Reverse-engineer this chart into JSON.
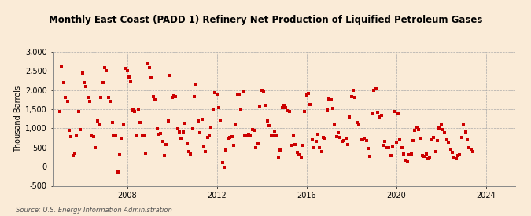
{
  "title": "Monthly East Coast (PADD 1) Refinery Net Production of Liquified Petroleum Gases",
  "ylabel": "Thousand Barrels",
  "source": "Source: U.S. Energy Information Administration",
  "background_color": "#faebd7",
  "marker_color": "#cc0000",
  "grid_color": "#aaaaaa",
  "ylim": [
    -500,
    3000
  ],
  "yticks": [
    -500,
    0,
    500,
    1000,
    1500,
    2000,
    2500,
    3000
  ],
  "xlim_start": 2004.7,
  "xlim_end": 2025.3,
  "xticks": [
    2008,
    2012,
    2016,
    2020,
    2024
  ],
  "data": [
    [
      2005.0,
      1450
    ],
    [
      2005.083,
      2600
    ],
    [
      2005.167,
      2200
    ],
    [
      2005.25,
      1800
    ],
    [
      2005.333,
      1700
    ],
    [
      2005.417,
      950
    ],
    [
      2005.5,
      780
    ],
    [
      2005.583,
      300
    ],
    [
      2005.667,
      350
    ],
    [
      2005.75,
      800
    ],
    [
      2005.833,
      1450
    ],
    [
      2005.917,
      960
    ],
    [
      2006.0,
      2450
    ],
    [
      2006.083,
      2200
    ],
    [
      2006.167,
      2100
    ],
    [
      2006.25,
      1800
    ],
    [
      2006.333,
      1700
    ],
    [
      2006.417,
      800
    ],
    [
      2006.5,
      780
    ],
    [
      2006.583,
      500
    ],
    [
      2006.667,
      1200
    ],
    [
      2006.75,
      1120
    ],
    [
      2006.833,
      1800
    ],
    [
      2006.917,
      2200
    ],
    [
      2007.0,
      2590
    ],
    [
      2007.083,
      2500
    ],
    [
      2007.167,
      1800
    ],
    [
      2007.25,
      1700
    ],
    [
      2007.333,
      1150
    ],
    [
      2007.417,
      800
    ],
    [
      2007.5,
      800
    ],
    [
      2007.583,
      -150
    ],
    [
      2007.667,
      320
    ],
    [
      2007.75,
      750
    ],
    [
      2007.833,
      1100
    ],
    [
      2007.917,
      2560
    ],
    [
      2008.0,
      2500
    ],
    [
      2008.083,
      2350
    ],
    [
      2008.167,
      2210
    ],
    [
      2008.25,
      1490
    ],
    [
      2008.333,
      1440
    ],
    [
      2008.417,
      820
    ],
    [
      2008.5,
      1500
    ],
    [
      2008.583,
      1150
    ],
    [
      2008.667,
      800
    ],
    [
      2008.75,
      820
    ],
    [
      2008.833,
      350
    ],
    [
      2008.917,
      2700
    ],
    [
      2009.0,
      2580
    ],
    [
      2009.083,
      2320
    ],
    [
      2009.167,
      1820
    ],
    [
      2009.25,
      1750
    ],
    [
      2009.333,
      980
    ],
    [
      2009.417,
      850
    ],
    [
      2009.5,
      860
    ],
    [
      2009.583,
      650
    ],
    [
      2009.667,
      300
    ],
    [
      2009.75,
      570
    ],
    [
      2009.833,
      1200
    ],
    [
      2009.917,
      2380
    ],
    [
      2010.0,
      1800
    ],
    [
      2010.083,
      1850
    ],
    [
      2010.167,
      1830
    ],
    [
      2010.25,
      980
    ],
    [
      2010.333,
      900
    ],
    [
      2010.417,
      750
    ],
    [
      2010.5,
      900
    ],
    [
      2010.583,
      1130
    ],
    [
      2010.667,
      600
    ],
    [
      2010.75,
      390
    ],
    [
      2010.833,
      340
    ],
    [
      2010.917,
      990
    ],
    [
      2011.0,
      1840
    ],
    [
      2011.083,
      2130
    ],
    [
      2011.167,
      1200
    ],
    [
      2011.25,
      880
    ],
    [
      2011.333,
      1240
    ],
    [
      2011.417,
      510
    ],
    [
      2011.5,
      400
    ],
    [
      2011.583,
      770
    ],
    [
      2011.667,
      830
    ],
    [
      2011.75,
      1020
    ],
    [
      2011.833,
      1500
    ],
    [
      2011.917,
      1930
    ],
    [
      2012.0,
      1890
    ],
    [
      2012.083,
      1550
    ],
    [
      2012.167,
      1210
    ],
    [
      2012.25,
      100
    ],
    [
      2012.333,
      -20
    ],
    [
      2012.417,
      440
    ],
    [
      2012.5,
      750
    ],
    [
      2012.583,
      760
    ],
    [
      2012.667,
      780
    ],
    [
      2012.75,
      560
    ],
    [
      2012.833,
      1110
    ],
    [
      2012.917,
      1900
    ],
    [
      2013.0,
      1900
    ],
    [
      2013.083,
      1500
    ],
    [
      2013.167,
      1980
    ],
    [
      2013.25,
      800
    ],
    [
      2013.333,
      820
    ],
    [
      2013.417,
      840
    ],
    [
      2013.5,
      800
    ],
    [
      2013.583,
      960
    ],
    [
      2013.667,
      940
    ],
    [
      2013.75,
      490
    ],
    [
      2013.833,
      600
    ],
    [
      2013.917,
      1570
    ],
    [
      2014.0,
      1990
    ],
    [
      2014.083,
      1950
    ],
    [
      2014.167,
      1600
    ],
    [
      2014.25,
      1200
    ],
    [
      2014.333,
      1080
    ],
    [
      2014.417,
      820
    ],
    [
      2014.5,
      820
    ],
    [
      2014.583,
      920
    ],
    [
      2014.667,
      820
    ],
    [
      2014.75,
      230
    ],
    [
      2014.833,
      440
    ],
    [
      2014.917,
      1550
    ],
    [
      2015.0,
      1590
    ],
    [
      2015.083,
      1540
    ],
    [
      2015.167,
      1470
    ],
    [
      2015.25,
      1430
    ],
    [
      2015.333,
      550
    ],
    [
      2015.417,
      800
    ],
    [
      2015.5,
      580
    ],
    [
      2015.583,
      380
    ],
    [
      2015.667,
      310
    ],
    [
      2015.75,
      250
    ],
    [
      2015.833,
      550
    ],
    [
      2015.917,
      1440
    ],
    [
      2016.0,
      1880
    ],
    [
      2016.083,
      1920
    ],
    [
      2016.167,
      1630
    ],
    [
      2016.25,
      700
    ],
    [
      2016.333,
      490
    ],
    [
      2016.417,
      670
    ],
    [
      2016.5,
      850
    ],
    [
      2016.583,
      500
    ],
    [
      2016.667,
      390
    ],
    [
      2016.75,
      760
    ],
    [
      2016.833,
      750
    ],
    [
      2016.917,
      1490
    ],
    [
      2017.0,
      1770
    ],
    [
      2017.083,
      1740
    ],
    [
      2017.167,
      1520
    ],
    [
      2017.25,
      1100
    ],
    [
      2017.333,
      790
    ],
    [
      2017.417,
      880
    ],
    [
      2017.5,
      760
    ],
    [
      2017.583,
      650
    ],
    [
      2017.667,
      690
    ],
    [
      2017.75,
      750
    ],
    [
      2017.833,
      580
    ],
    [
      2017.917,
      1300
    ],
    [
      2018.0,
      1840
    ],
    [
      2018.083,
      2000
    ],
    [
      2018.167,
      1800
    ],
    [
      2018.25,
      1150
    ],
    [
      2018.333,
      1100
    ],
    [
      2018.417,
      700
    ],
    [
      2018.5,
      700
    ],
    [
      2018.583,
      750
    ],
    [
      2018.667,
      680
    ],
    [
      2018.75,
      480
    ],
    [
      2018.833,
      280
    ],
    [
      2018.917,
      1380
    ],
    [
      2019.0,
      1990
    ],
    [
      2019.083,
      2040
    ],
    [
      2019.167,
      1420
    ],
    [
      2019.25,
      1290
    ],
    [
      2019.333,
      1340
    ],
    [
      2019.417,
      560
    ],
    [
      2019.5,
      660
    ],
    [
      2019.583,
      490
    ],
    [
      2019.667,
      490
    ],
    [
      2019.75,
      290
    ],
    [
      2019.833,
      520
    ],
    [
      2019.917,
      1440
    ],
    [
      2020.0,
      640
    ],
    [
      2020.083,
      1380
    ],
    [
      2020.167,
      700
    ],
    [
      2020.25,
      500
    ],
    [
      2020.333,
      330
    ],
    [
      2020.417,
      160
    ],
    [
      2020.5,
      120
    ],
    [
      2020.583,
      310
    ],
    [
      2020.667,
      330
    ],
    [
      2020.75,
      690
    ],
    [
      2020.833,
      950
    ],
    [
      2020.917,
      1020
    ],
    [
      2021.0,
      970
    ],
    [
      2021.083,
      750
    ],
    [
      2021.167,
      300
    ],
    [
      2021.25,
      260
    ],
    [
      2021.333,
      330
    ],
    [
      2021.417,
      200
    ],
    [
      2021.5,
      240
    ],
    [
      2021.583,
      710
    ],
    [
      2021.667,
      770
    ],
    [
      2021.75,
      390
    ],
    [
      2021.833,
      680
    ],
    [
      2021.917,
      1000
    ],
    [
      2022.0,
      1090
    ],
    [
      2022.083,
      970
    ],
    [
      2022.167,
      890
    ],
    [
      2022.25,
      700
    ],
    [
      2022.333,
      640
    ],
    [
      2022.417,
      450
    ],
    [
      2022.5,
      380
    ],
    [
      2022.583,
      250
    ],
    [
      2022.667,
      200
    ],
    [
      2022.75,
      300
    ],
    [
      2022.833,
      310
    ],
    [
      2022.917,
      760
    ],
    [
      2023.0,
      1100
    ],
    [
      2023.083,
      900
    ],
    [
      2023.167,
      700
    ],
    [
      2023.25,
      500
    ],
    [
      2023.333,
      450
    ],
    [
      2023.417,
      400
    ]
  ]
}
